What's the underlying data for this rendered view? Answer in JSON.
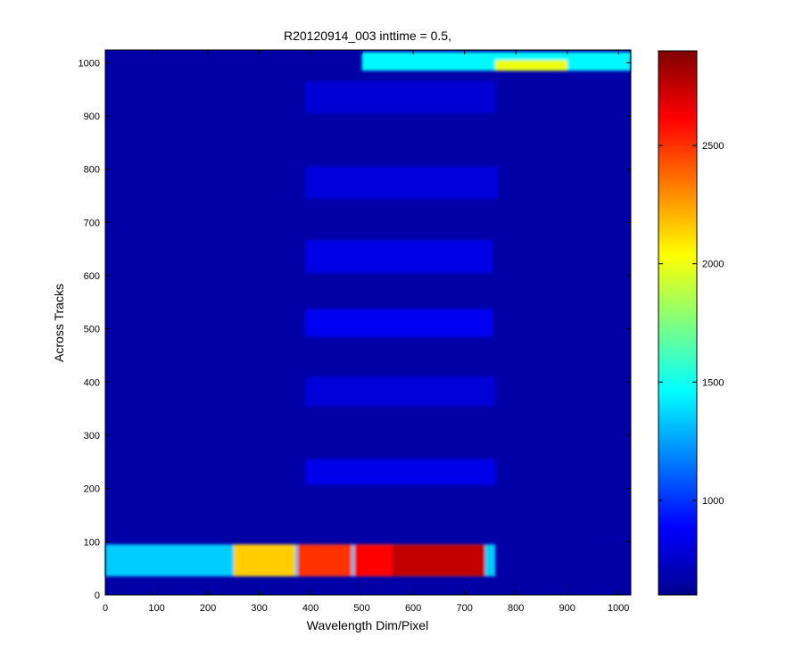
{
  "chart_data": {
    "type": "heatmap",
    "title": "R20120914_003 inttime = 0.5,",
    "xlabel": "Wavelength Dim/Pixel",
    "ylabel": "Across Tracks",
    "xlim": [
      0,
      1024
    ],
    "ylim": [
      0,
      1024
    ],
    "x_ticks": [
      0,
      100,
      200,
      300,
      400,
      500,
      600,
      700,
      800,
      900,
      1000
    ],
    "y_ticks": [
      0,
      100,
      200,
      300,
      400,
      500,
      600,
      700,
      800,
      900,
      1000
    ],
    "colorbar": {
      "colormap": "jet",
      "range": [
        600,
        2900
      ],
      "ticks": [
        1000,
        1500,
        2000,
        2500
      ]
    },
    "background_value": 690,
    "regions": [
      {
        "x": [
          0,
          760
        ],
        "y": [
          35,
          95
        ],
        "value": 1350,
        "note": "bottom spectral band"
      },
      {
        "x": [
          250,
          370
        ],
        "y": [
          35,
          95
        ],
        "value": 2150
      },
      {
        "x": [
          375,
          480
        ],
        "y": [
          35,
          95
        ],
        "value": 2500
      },
      {
        "x": [
          485,
          560
        ],
        "y": [
          35,
          95
        ],
        "value": 2600
      },
      {
        "x": [
          560,
          740
        ],
        "y": [
          35,
          95
        ],
        "value": 2750
      },
      {
        "x": [
          390,
          760
        ],
        "y": [
          207,
          255
        ],
        "value": 840
      },
      {
        "x": [
          390,
          760
        ],
        "y": [
          355,
          410
        ],
        "value": 800
      },
      {
        "x": [
          390,
          755
        ],
        "y": [
          485,
          537
        ],
        "value": 860
      },
      {
        "x": [
          390,
          755
        ],
        "y": [
          605,
          667
        ],
        "value": 830
      },
      {
        "x": [
          390,
          765
        ],
        "y": [
          745,
          805
        ],
        "value": 810
      },
      {
        "x": [
          390,
          760
        ],
        "y": [
          905,
          965
        ],
        "value": 790
      },
      {
        "x": [
          500,
          1024
        ],
        "y": [
          985,
          1020
        ],
        "value": 1450,
        "note": "top bright band"
      },
      {
        "x": [
          760,
          900
        ],
        "y": [
          985,
          1005
        ],
        "value": 2000
      }
    ]
  }
}
